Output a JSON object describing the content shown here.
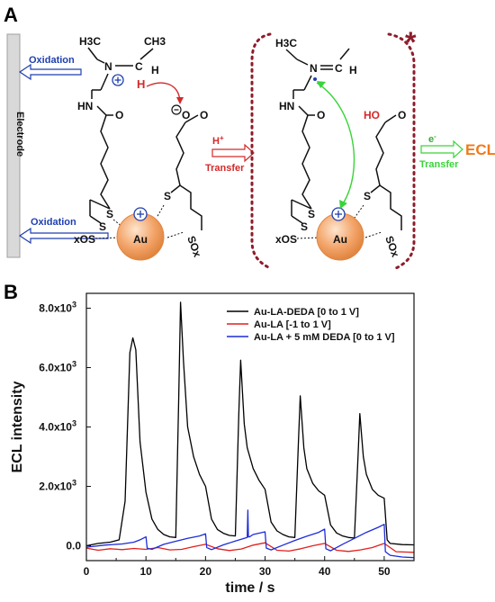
{
  "panel_a": {
    "letter": "A",
    "electrode_label": "Electrode",
    "oxidation_top": "Oxidation",
    "oxidation_bottom": "Oxidation",
    "h_plus": "H",
    "h_plus_sup": "+",
    "transfer1": "Transfer",
    "e_minus": "e",
    "e_minus_sup": "-",
    "transfer2": "Transfer",
    "ecl_label": "ECL",
    "asterisk": "*",
    "au_left": "Au",
    "au_right": "Au",
    "mol_left": {
      "h3c": "H3C",
      "n": "N",
      "c": "C",
      "h": "H",
      "ch3": "CH3",
      "h_red": "H",
      "hn": "HN",
      "o_amide": "O",
      "o_minus": "O",
      "o_acid": "O",
      "s1": "S",
      "s2": "S",
      "s3": "S",
      "xos": "xOS",
      "sox": "SOx"
    },
    "mol_right": {
      "h3c": "H3C",
      "n": "N",
      "c": "C",
      "h": "H",
      "hn": "HN",
      "o_amide": "O",
      "ho": "HO",
      "o_acid": "O",
      "s1": "S",
      "s2": "S",
      "s3": "S",
      "xos": "xOS",
      "sox": "SOx"
    },
    "colors": {
      "oxidation": "#1f3fb0",
      "h_transfer": "#d22a2a",
      "e_transfer": "#39d43a",
      "ecl": "#f07a1a",
      "bracket": "#8e1c2a",
      "au": "#f3a56b"
    }
  },
  "panel_b": {
    "letter": "B",
    "colors": {
      "series0": "#000000",
      "series1": "#e0201c",
      "series2": "#1c2cd8"
    }
  },
  "chart_data": {
    "type": "line",
    "xlabel": "time / s",
    "ylabel": "ECL intensity",
    "xlim": [
      0,
      55
    ],
    "ylim": [
      -500,
      8500
    ],
    "x_ticks": [
      0,
      10,
      20,
      30,
      40,
      50
    ],
    "y_ticks": [
      {
        "value": 0,
        "label": "0.0"
      },
      {
        "value": 2000,
        "label": "2.0x10",
        "exp": "3"
      },
      {
        "value": 4000,
        "label": "4.0x10",
        "exp": "3"
      },
      {
        "value": 6000,
        "label": "6.0x10",
        "exp": "3"
      },
      {
        "value": 8000,
        "label": "8.0x10",
        "exp": "3"
      }
    ],
    "legend_position": "top-right",
    "series": [
      {
        "name": "Au-LA-DEDA [0 to 1 V]",
        "x": [
          0,
          2,
          4,
          5.5,
          6.5,
          7.3,
          7.8,
          8.3,
          9,
          10,
          11,
          12,
          13,
          14,
          15,
          15.5,
          15.8,
          16.3,
          17,
          18,
          19,
          20,
          21,
          22,
          23,
          24,
          25,
          25.6,
          25.9,
          26.5,
          27,
          28,
          29,
          30,
          31,
          32,
          33,
          34,
          35,
          35.6,
          35.9,
          36.5,
          37,
          38,
          39,
          40,
          41,
          42,
          43,
          44,
          45,
          45.6,
          45.9,
          46.5,
          47,
          48,
          49,
          50,
          50.5,
          51,
          53,
          55
        ],
        "y": [
          0,
          80,
          120,
          200,
          1500,
          6500,
          7000,
          6600,
          3500,
          1800,
          900,
          550,
          380,
          300,
          280,
          5000,
          8200,
          6200,
          4000,
          3000,
          2400,
          2000,
          900,
          550,
          420,
          350,
          330,
          4500,
          6250,
          4100,
          3300,
          2600,
          2200,
          1900,
          800,
          500,
          380,
          300,
          280,
          3500,
          5050,
          3300,
          2600,
          2100,
          1850,
          1700,
          700,
          430,
          330,
          280,
          260,
          3000,
          4450,
          3000,
          2400,
          1900,
          1700,
          1600,
          200,
          80,
          40,
          30
        ]
      },
      {
        "name": "Au-LA [-1 to 1 V]",
        "x": [
          0,
          2,
          4,
          6,
          8,
          10,
          12,
          14,
          16,
          18,
          20,
          22,
          24,
          26,
          28,
          30,
          32,
          34,
          36,
          38,
          40,
          42,
          44,
          46,
          48,
          50,
          52,
          55
        ],
        "y": [
          -80,
          -150,
          -100,
          -130,
          -90,
          -120,
          -60,
          -140,
          -120,
          -30,
          50,
          -100,
          -160,
          -110,
          20,
          100,
          -150,
          -180,
          -100,
          0,
          80,
          -150,
          -190,
          -140,
          -60,
          80,
          -200,
          -220
        ]
      },
      {
        "name": "Au-LA + 5 mM DEDA [0 to 1 V]",
        "x": [
          0,
          3,
          6,
          8,
          9,
          10,
          10.2,
          11,
          13,
          15,
          17,
          19,
          20,
          20.2,
          21,
          23,
          25,
          27,
          27.1,
          27.2,
          27.4,
          28,
          30,
          30.2,
          31,
          33,
          35,
          37,
          39,
          40,
          40.2,
          41,
          43,
          45,
          47,
          49,
          50,
          50.2,
          51,
          53,
          55
        ],
        "y": [
          -50,
          20,
          60,
          120,
          200,
          300,
          -80,
          -120,
          50,
          150,
          250,
          330,
          400,
          -60,
          -130,
          30,
          160,
          280,
          1200,
          300,
          300,
          380,
          470,
          -80,
          -140,
          20,
          180,
          320,
          450,
          560,
          -100,
          -170,
          50,
          250,
          450,
          620,
          720,
          -200,
          -320,
          -380,
          -400
        ]
      }
    ]
  }
}
